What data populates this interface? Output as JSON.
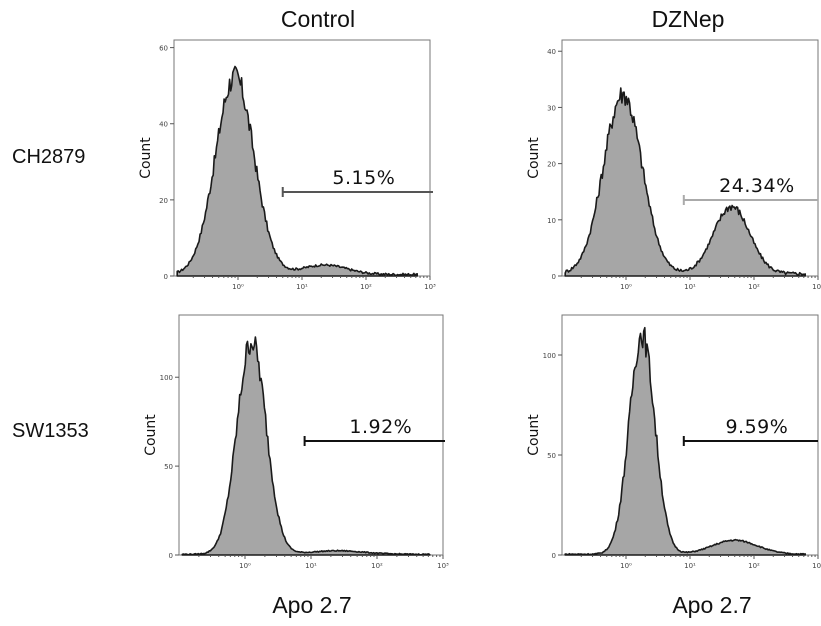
{
  "column_titles": [
    "Control",
    "DZNep"
  ],
  "row_labels": [
    "CH2879",
    "SW1353"
  ],
  "x_axis_label": "Apo 2.7",
  "chart_data": [
    {
      "type": "histogram",
      "cell_line": "CH2879",
      "condition": "Control",
      "ylabel": "Count",
      "xscale": "log",
      "xlim": [
        0.1,
        1000
      ],
      "xticks": [
        "10⁰",
        "10¹",
        "10²",
        "10³"
      ],
      "ylim": [
        0,
        62
      ],
      "yticks": [
        "0",
        "20",
        "40",
        "60"
      ],
      "peaks": [
        {
          "log_x": -0.05,
          "height": 52,
          "width": 0.3
        },
        {
          "log_x": 1.35,
          "height": 2.5,
          "width": 0.35
        }
      ],
      "gate": {
        "start": 5,
        "end": 1000,
        "label": "5.15%",
        "color": "#555555"
      }
    },
    {
      "type": "histogram",
      "cell_line": "CH2879",
      "condition": "DZNep",
      "ylabel": "Count",
      "xscale": "log",
      "xlim": [
        0.1,
        1000
      ],
      "xticks": [
        "10⁰",
        "10¹",
        "10²",
        "10³"
      ],
      "ylim": [
        0,
        42
      ],
      "yticks": [
        "0",
        "10",
        "20",
        "30",
        "40"
      ],
      "peaks": [
        {
          "log_x": -0.05,
          "height": 32,
          "width": 0.3
        },
        {
          "log_x": 1.65,
          "height": 12,
          "width": 0.28
        }
      ],
      "gate": {
        "start": 8,
        "end": 1000,
        "label": "24.34%",
        "color": "#aaaaaa"
      }
    },
    {
      "type": "histogram",
      "cell_line": "SW1353",
      "condition": "Control",
      "ylabel": "Count",
      "xscale": "log",
      "xlim": [
        0.1,
        1000
      ],
      "xticks": [
        "10⁰",
        "10¹",
        "10²",
        "10³"
      ],
      "ylim": [
        0,
        135
      ],
      "yticks": [
        "0",
        "50",
        "100"
      ],
      "peaks": [
        {
          "log_x": 0.1,
          "height": 120,
          "width": 0.22
        },
        {
          "log_x": 1.4,
          "height": 2,
          "width": 0.4
        }
      ],
      "gate": {
        "start": 8,
        "end": 1000,
        "label": "1.92%",
        "color": "#111111"
      }
    },
    {
      "type": "histogram",
      "cell_line": "SW1353",
      "condition": "DZNep",
      "ylabel": "Count",
      "xscale": "log",
      "xlim": [
        0.1,
        1000
      ],
      "xticks": [
        "10⁰",
        "10¹",
        "10²",
        "10³"
      ],
      "ylim": [
        0,
        120
      ],
      "yticks": [
        "0",
        "50",
        "100"
      ],
      "peaks": [
        {
          "log_x": 0.25,
          "height": 110,
          "width": 0.2
        },
        {
          "log_x": 1.7,
          "height": 7,
          "width": 0.35
        }
      ],
      "gate": {
        "start": 8,
        "end": 1000,
        "label": "9.59%",
        "color": "#111111"
      }
    }
  ]
}
